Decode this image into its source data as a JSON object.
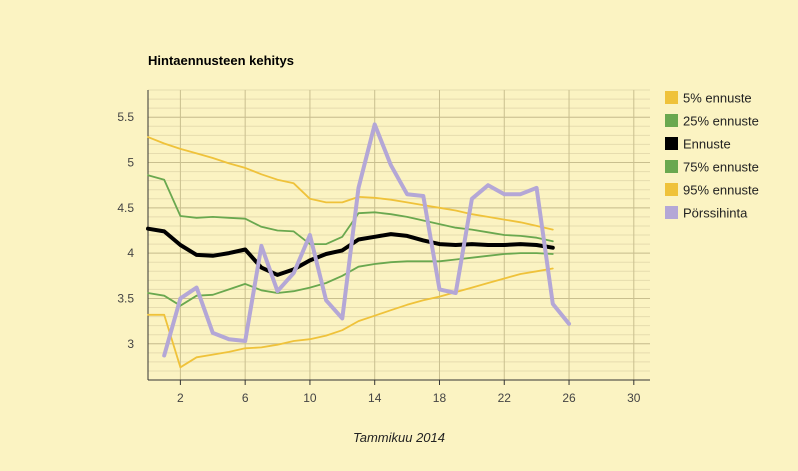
{
  "chart_data": {
    "type": "line",
    "title": "Hintaennusteen kehitys",
    "xlabel": "Tammikuu 2014",
    "ylabel": "",
    "xlim": [
      0,
      31
    ],
    "ylim": [
      2.6,
      5.8
    ],
    "x_ticks": [
      2,
      6,
      10,
      14,
      18,
      22,
      26,
      30
    ],
    "y_ticks": [
      3,
      3.5,
      4,
      4.5,
      5,
      5.5
    ],
    "y_tick_labels": [
      "3",
      "3.5",
      "4",
      "4.5",
      "5",
      "5.5"
    ],
    "grid": true,
    "legend_position": "right",
    "series": [
      {
        "name": "5% ennuste",
        "color": "#efc23a",
        "width": 1.8,
        "x": [
          0,
          1,
          2,
          3,
          4,
          5,
          6,
          7,
          8,
          9,
          10,
          11,
          12,
          13,
          14,
          15,
          16,
          17,
          18,
          19,
          20,
          21,
          22,
          23,
          24,
          25
        ],
        "values": [
          3.32,
          3.32,
          2.74,
          2.85,
          2.88,
          2.91,
          2.95,
          2.96,
          2.99,
          3.03,
          3.05,
          3.09,
          3.15,
          3.25,
          3.31,
          3.37,
          3.43,
          3.48,
          3.52,
          3.57,
          3.62,
          3.67,
          3.72,
          3.77,
          3.8,
          3.83
        ]
      },
      {
        "name": "25% ennuste",
        "color": "#6aa84f",
        "width": 1.8,
        "x": [
          0,
          1,
          2,
          3,
          4,
          5,
          6,
          7,
          8,
          9,
          10,
          11,
          12,
          13,
          14,
          15,
          16,
          17,
          18,
          19,
          20,
          21,
          22,
          23,
          24,
          25
        ],
        "values": [
          3.56,
          3.53,
          3.42,
          3.53,
          3.54,
          3.6,
          3.66,
          3.59,
          3.56,
          3.58,
          3.62,
          3.67,
          3.75,
          3.85,
          3.88,
          3.9,
          3.91,
          3.91,
          3.91,
          3.93,
          3.95,
          3.97,
          3.99,
          4.0,
          4.0,
          3.99
        ]
      },
      {
        "name": "Ennuste",
        "color": "#000000",
        "width": 4,
        "x": [
          0,
          1,
          2,
          3,
          4,
          5,
          6,
          7,
          8,
          9,
          10,
          11,
          12,
          13,
          14,
          15,
          16,
          17,
          18,
          19,
          20,
          21,
          22,
          23,
          24,
          25
        ],
        "values": [
          4.27,
          4.24,
          4.09,
          3.98,
          3.97,
          4.0,
          4.04,
          3.84,
          3.76,
          3.82,
          3.92,
          3.99,
          4.03,
          4.15,
          4.18,
          4.21,
          4.19,
          4.14,
          4.1,
          4.09,
          4.1,
          4.09,
          4.09,
          4.1,
          4.09,
          4.06
        ]
      },
      {
        "name": "75% ennuste",
        "color": "#6aa84f",
        "width": 1.8,
        "x": [
          0,
          1,
          2,
          3,
          4,
          5,
          6,
          7,
          8,
          9,
          10,
          11,
          12,
          13,
          14,
          15,
          16,
          17,
          18,
          19,
          20,
          21,
          22,
          23,
          24,
          25
        ],
        "values": [
          4.86,
          4.81,
          4.41,
          4.39,
          4.4,
          4.39,
          4.38,
          4.29,
          4.25,
          4.24,
          4.1,
          4.1,
          4.18,
          4.44,
          4.45,
          4.43,
          4.4,
          4.36,
          4.32,
          4.28,
          4.26,
          4.23,
          4.2,
          4.19,
          4.17,
          4.13
        ]
      },
      {
        "name": "95% ennuste",
        "color": "#efc23a",
        "width": 1.8,
        "x": [
          0,
          1,
          2,
          3,
          4,
          5,
          6,
          7,
          8,
          9,
          10,
          11,
          12,
          13,
          14,
          15,
          16,
          17,
          18,
          19,
          20,
          21,
          22,
          23,
          24,
          25
        ],
        "values": [
          5.28,
          5.21,
          5.15,
          5.1,
          5.05,
          4.99,
          4.94,
          4.87,
          4.81,
          4.77,
          4.6,
          4.56,
          4.56,
          4.62,
          4.61,
          4.59,
          4.56,
          4.53,
          4.5,
          4.47,
          4.43,
          4.4,
          4.37,
          4.34,
          4.3,
          4.26
        ]
      },
      {
        "name": "Pörssihinta",
        "color": "#b4a7d6",
        "width": 4,
        "x": [
          1,
          2,
          3,
          4,
          5,
          6,
          7,
          8,
          9,
          10,
          11,
          12,
          13,
          14,
          15,
          16,
          17,
          18,
          19,
          20,
          21,
          22,
          23,
          24,
          25,
          26
        ],
        "values": [
          2.87,
          3.5,
          3.62,
          3.12,
          3.05,
          3.03,
          4.08,
          3.58,
          3.78,
          4.2,
          3.48,
          3.28,
          4.72,
          5.42,
          4.97,
          4.65,
          4.63,
          3.6,
          3.56,
          4.6,
          4.75,
          4.65,
          4.65,
          4.72,
          3.44,
          3.22
        ]
      }
    ]
  }
}
